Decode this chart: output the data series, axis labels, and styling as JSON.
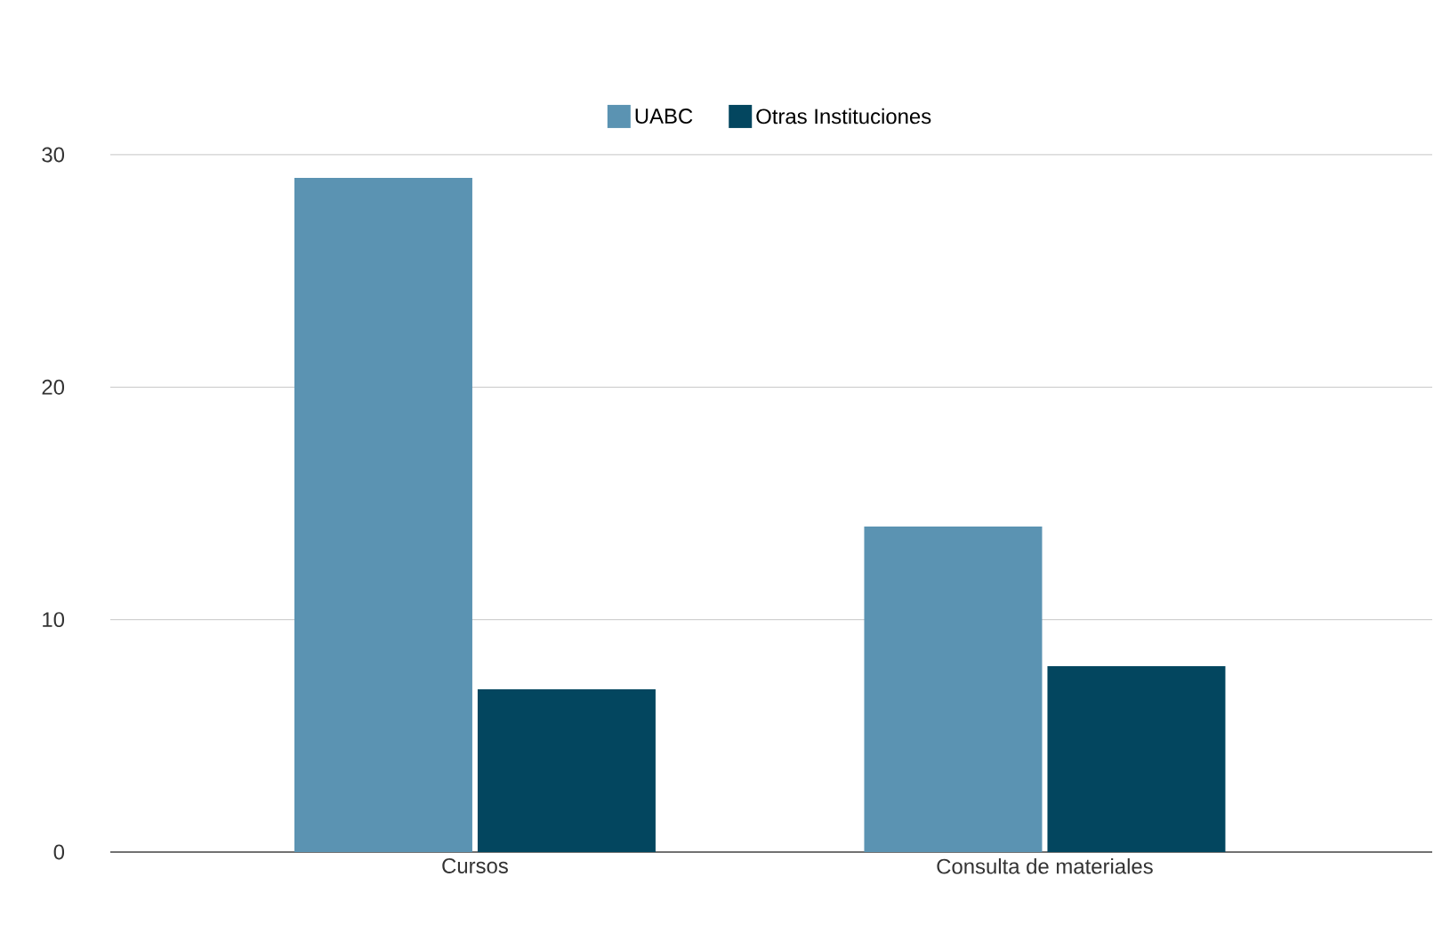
{
  "chart_data": {
    "type": "bar",
    "categories": [
      "Cursos",
      "Consulta de materiales"
    ],
    "series": [
      {
        "name": "UABC",
        "color": "#5b93b2",
        "values": [
          29,
          14
        ]
      },
      {
        "name": "Otras Instituciones",
        "color": "#03465f",
        "values": [
          7,
          8
        ]
      }
    ],
    "ylim": [
      0,
      30
    ],
    "yticks": [
      0,
      10,
      20,
      30
    ],
    "grid": "y",
    "legend": "top"
  }
}
